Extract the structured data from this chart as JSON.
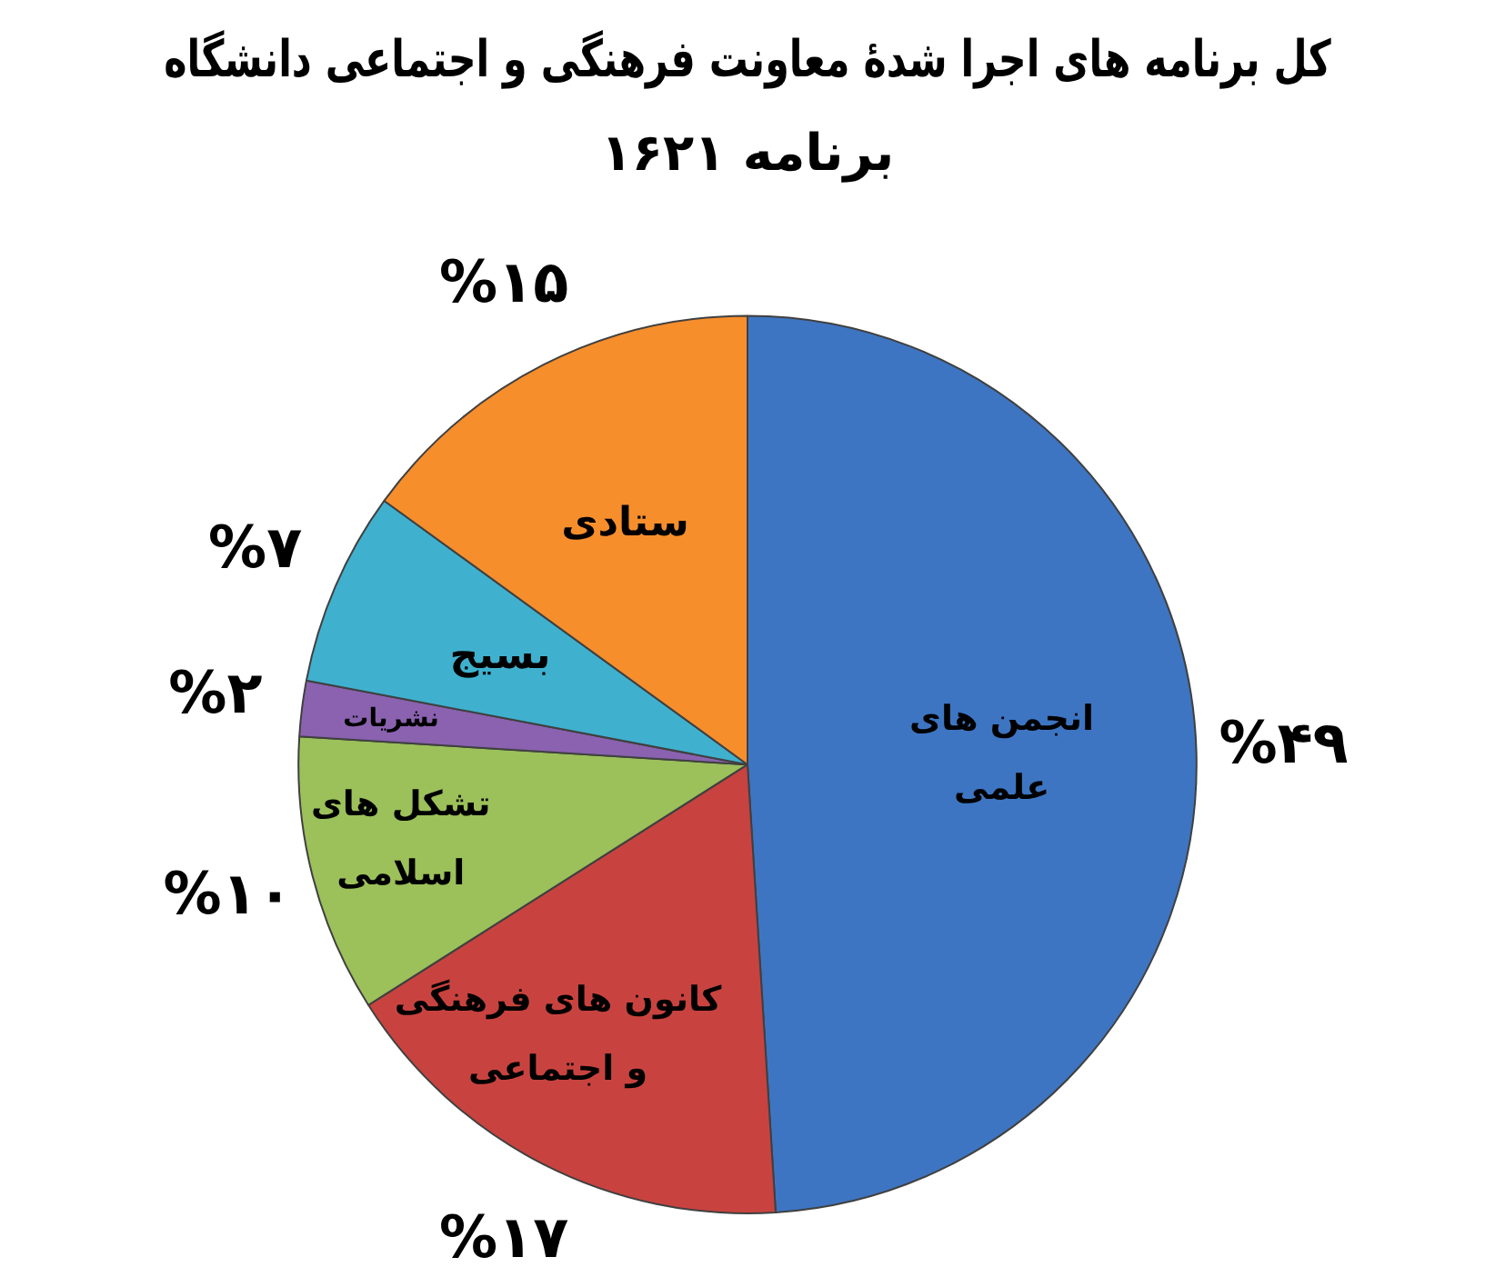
{
  "chart_data": {
    "type": "pie",
    "title": "کل برنامه های اجرا شدهٔ معاونت فرهنگی و اجتماعی دانشگاه",
    "subtitle": "برنامه ۱۶۲۱",
    "categories": [
      "انجمن های علمی",
      "کانون های فرهنگی و اجتماعی",
      "تشکل های اسلامی",
      "نشریات",
      "بسیج",
      "ستادی"
    ],
    "values": [
      49,
      17,
      10,
      2,
      7,
      15
    ],
    "colors": [
      "#3d75c2",
      "#c8433f",
      "#9cc05a",
      "#8a62b0",
      "#3fb1cf",
      "#f68e2c"
    ],
    "value_labels": [
      "%۴۹",
      "%۱۷",
      "%۱۰",
      "%۲",
      "%۷",
      "%۱۵"
    ],
    "legend": false
  }
}
